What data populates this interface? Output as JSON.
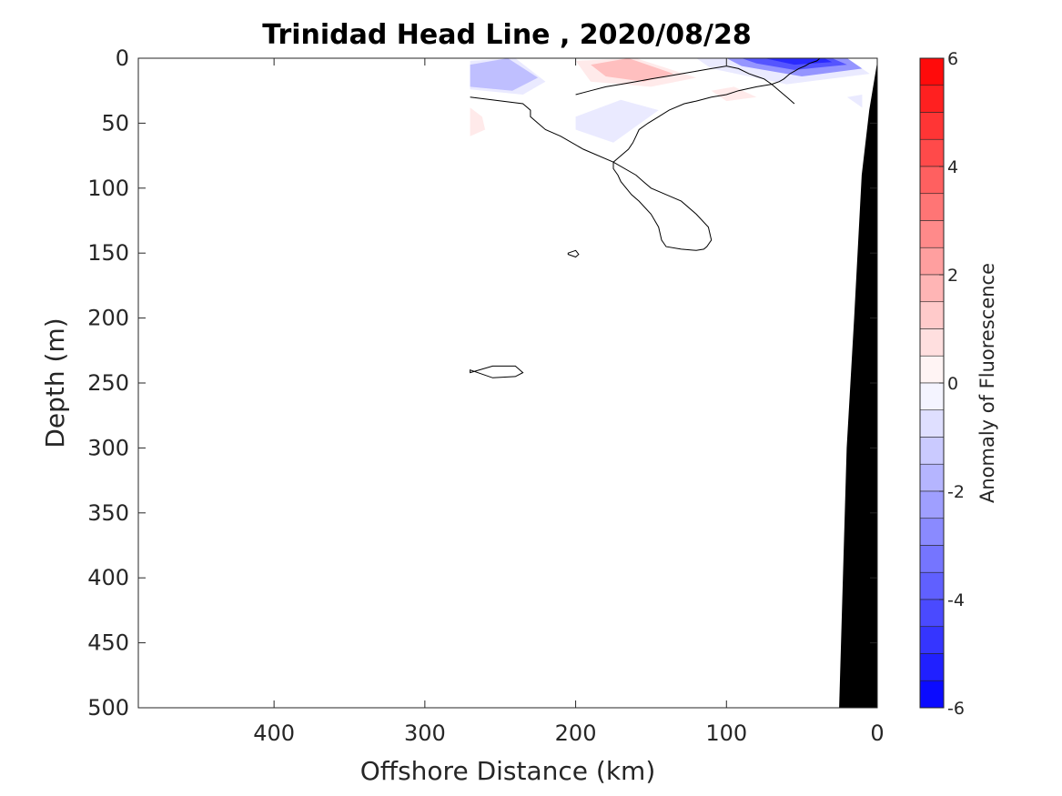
{
  "chart_data": {
    "type": "heatmap",
    "title": "Trinidad Head Line , 2020/08/28",
    "xlabel": "Offshore Distance (km)",
    "ylabel": "Depth (m)",
    "xlim": [
      490,
      0
    ],
    "ylim": [
      500,
      0
    ],
    "x_reversed": true,
    "y_reversed": true,
    "xticks": [
      400,
      300,
      200,
      100,
      0
    ],
    "yticks": [
      0,
      50,
      100,
      150,
      200,
      250,
      300,
      350,
      400,
      450,
      500
    ],
    "colorbar": {
      "label": "Anomaly of Fluorescence",
      "range": [
        -6,
        6
      ],
      "step": 0.5,
      "ticks": [
        6,
        4,
        2,
        0,
        -2,
        -4,
        -6
      ],
      "low_color": "#0000ff",
      "mid_color": "#ffffff",
      "high_color": "#ff0000"
    },
    "anomaly_patches": [
      {
        "sign": "neg",
        "level": -1.5,
        "x": [
          270,
          245,
          225,
          242,
          270
        ],
        "y": [
          5,
          0,
          15,
          25,
          22
        ]
      },
      {
        "sign": "neg",
        "level": -0.5,
        "x": [
          270,
          240,
          220,
          235,
          270
        ],
        "y": [
          2,
          0,
          18,
          28,
          24
        ]
      },
      {
        "sign": "pos",
        "level": 1.5,
        "x": [
          190,
          165,
          135,
          155,
          180
        ],
        "y": [
          5,
          0,
          12,
          18,
          14
        ]
      },
      {
        "sign": "pos",
        "level": 0.5,
        "x": [
          200,
          160,
          120,
          150,
          190
        ],
        "y": [
          2,
          0,
          15,
          22,
          18
        ]
      },
      {
        "sign": "pos",
        "level": 0.5,
        "x": [
          110,
          95,
          80,
          100
        ],
        "y": [
          25,
          22,
          30,
          33
        ]
      },
      {
        "sign": "pos",
        "level": 0.5,
        "x": [
          270,
          262,
          260,
          270
        ],
        "y": [
          38,
          45,
          55,
          60
        ]
      },
      {
        "sign": "neg",
        "level": -0.5,
        "x": [
          200,
          170,
          145,
          175,
          200
        ],
        "y": [
          45,
          32,
          40,
          65,
          55
        ]
      },
      {
        "sign": "neg",
        "level": -0.5,
        "x": [
          20,
          10,
          10
        ],
        "y": [
          30,
          28,
          38
        ]
      },
      {
        "sign": "neg",
        "level": -0.5,
        "x": [
          120,
          80,
          20,
          5,
          60,
          110
        ],
        "y": [
          0,
          0,
          0,
          12,
          20,
          8
        ]
      },
      {
        "sign": "neg",
        "level": -2.5,
        "x": [
          100,
          70,
          20,
          10,
          50,
          90
        ],
        "y": [
          0,
          0,
          0,
          8,
          14,
          6
        ]
      },
      {
        "sign": "neg",
        "level": -4.0,
        "x": [
          90,
          70,
          30,
          20,
          55,
          80
        ],
        "y": [
          0,
          0,
          0,
          5,
          9,
          4
        ]
      },
      {
        "sign": "neg",
        "level": -5.0,
        "x": [
          75,
          60,
          35,
          30,
          55
        ],
        "y": [
          0,
          0,
          0,
          3,
          5
        ]
      }
    ],
    "zero_contours": [
      {
        "x": [
          270,
          235,
          230,
          230,
          225,
          220,
          210,
          195,
          175,
          160,
          155,
          150,
          140,
          130,
          120,
          112,
          110,
          113,
          115,
          120,
          130,
          140,
          143,
          145,
          150,
          158,
          163,
          170,
          172,
          175,
          175,
          170,
          165,
          162,
          160,
          158,
          152,
          145,
          138,
          128,
          120,
          110,
          100,
          92,
          80,
          70,
          65,
          62,
          60,
          58,
          55,
          52,
          48,
          45,
          40,
          38,
          35,
          32,
          30,
          27,
          25,
          22,
          20,
          18,
          17,
          16,
          15,
          14,
          13,
          12,
          10,
          10
        ],
        "y": [
          30,
          35,
          40,
          45,
          50,
          55,
          60,
          70,
          80,
          90,
          95,
          100,
          105,
          110,
          120,
          130,
          140,
          145,
          147,
          148,
          147,
          145,
          140,
          130,
          120,
          110,
          105,
          95,
          90,
          85,
          80,
          75,
          70,
          65,
          60,
          55,
          50,
          45,
          40,
          35,
          33,
          30,
          28,
          25,
          22,
          20,
          18,
          16,
          14,
          12,
          10,
          8,
          6,
          4,
          2,
          0,
          0,
          0,
          0,
          0,
          0,
          0,
          0,
          0,
          0,
          0,
          0,
          0,
          0,
          0,
          0,
          0
        ]
      },
      {
        "x": [
          200,
          190,
          180,
          170,
          160,
          150,
          140,
          130,
          120,
          110,
          100,
          92,
          85,
          80,
          75,
          70,
          65,
          60,
          55
        ],
        "y": [
          28,
          25,
          22,
          20,
          18,
          16,
          14,
          12,
          10,
          8,
          6,
          8,
          12,
          14,
          16,
          20,
          25,
          30,
          35
        ]
      }
    ],
    "small_contours": [
      {
        "x": [
          205,
          200,
          198,
          200,
          205
        ],
        "y": [
          150,
          148,
          151,
          153,
          151
        ]
      },
      {
        "x": [
          270,
          255,
          240,
          235,
          240,
          255,
          270
        ],
        "y": [
          242,
          237,
          237,
          242,
          245,
          246,
          240
        ]
      }
    ],
    "seafloor": {
      "x": [
        25,
        20,
        15,
        10,
        5,
        0,
        0
      ],
      "y": [
        500,
        300,
        200,
        90,
        40,
        5,
        500
      ]
    }
  }
}
